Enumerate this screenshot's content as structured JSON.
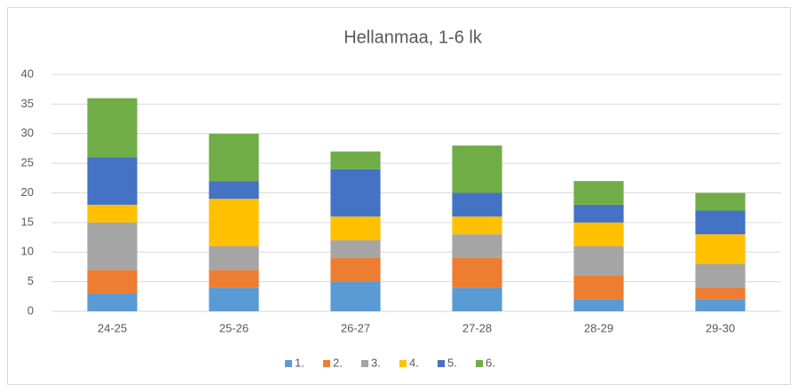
{
  "chart_data": {
    "type": "stacked_bar",
    "title": "Hellanmaa, 1-6 lk",
    "categories": [
      "24-25",
      "25-26",
      "26-27",
      "27-28",
      "28-29",
      "29-30"
    ],
    "series": [
      {
        "name": "1.",
        "color": "#5b9bd5",
        "values": [
          3,
          4,
          5,
          4,
          2,
          2
        ]
      },
      {
        "name": "2.",
        "color": "#ed7d31",
        "values": [
          4,
          3,
          4,
          5,
          4,
          2
        ]
      },
      {
        "name": "3.",
        "color": "#a5a5a5",
        "values": [
          8,
          4,
          3,
          4,
          5,
          4
        ]
      },
      {
        "name": "4.",
        "color": "#ffc000",
        "values": [
          3,
          8,
          4,
          3,
          4,
          5
        ]
      },
      {
        "name": "5.",
        "color": "#4472c4",
        "values": [
          8,
          3,
          8,
          4,
          3,
          4
        ]
      },
      {
        "name": "6.",
        "color": "#70ad47",
        "values": [
          10,
          8,
          3,
          8,
          4,
          3
        ]
      }
    ],
    "ylim": [
      0,
      40
    ],
    "yticks": [
      0,
      5,
      10,
      15,
      20,
      25,
      30,
      35,
      40
    ],
    "grid": true,
    "legend": "bottom"
  }
}
